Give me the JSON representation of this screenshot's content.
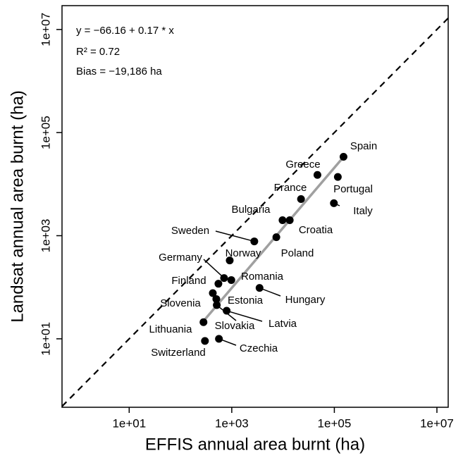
{
  "chart_data": {
    "type": "scatter",
    "xlabel": "EFFIS annual area burnt (ha)",
    "ylabel": "Landsat annual area burnt (ha)",
    "annotations": [
      "y = −66.16 + 0.17 * x",
      "R² = 0.72",
      "Bias = −19,186 ha"
    ],
    "log_x": true,
    "log_y": true,
    "grid": false,
    "color": "#000000",
    "xlim": [
      0.49,
      16600000
    ],
    "ylim": [
      0.47,
      29000000
    ],
    "xticks": [
      {
        "value": 10,
        "label": "1e+01"
      },
      {
        "value": 1000,
        "label": "1e+03"
      },
      {
        "value": 100000,
        "label": "1e+05"
      },
      {
        "value": 10000000,
        "label": "1e+07"
      }
    ],
    "yticks": [
      {
        "value": 10,
        "label": "1e+01"
      },
      {
        "value": 1000,
        "label": "1e+03"
      },
      {
        "value": 100000,
        "label": "1e+05"
      },
      {
        "value": 10000000,
        "label": "1e+07"
      }
    ],
    "labels": [
      "Spain",
      "Greece",
      "Portugal",
      "France",
      "Italy",
      "Bulgaria",
      "Croatia",
      "Poland",
      "Sweden",
      "Norway",
      "Germany",
      "Romania",
      "Finland",
      "Hungary",
      "Slovenia",
      "Estonia",
      "Slovakia",
      "Latvia",
      "Lithuania",
      "Switzerland",
      "Czechia"
    ],
    "x": [
      151000,
      46800,
      117000,
      22400,
      98000,
      9770,
      13500,
      7400,
      2750,
      912,
      708,
      980,
      549,
      3480,
      427,
      500,
      510,
      795,
      281,
      300,
      562
    ],
    "values": [
      33900,
      15100,
      13800,
      5130,
      4270,
      2000,
      2000,
      935,
      776,
      331,
      151,
      138,
      117,
      97,
      77,
      59,
      45,
      35,
      21,
      9.1,
      10
    ],
    "fit_line": {
      "color": "#a0a0a0",
      "x": [
        288,
        147000
      ],
      "y": [
        22.7,
        32600
      ]
    },
    "identity_line": true
  }
}
